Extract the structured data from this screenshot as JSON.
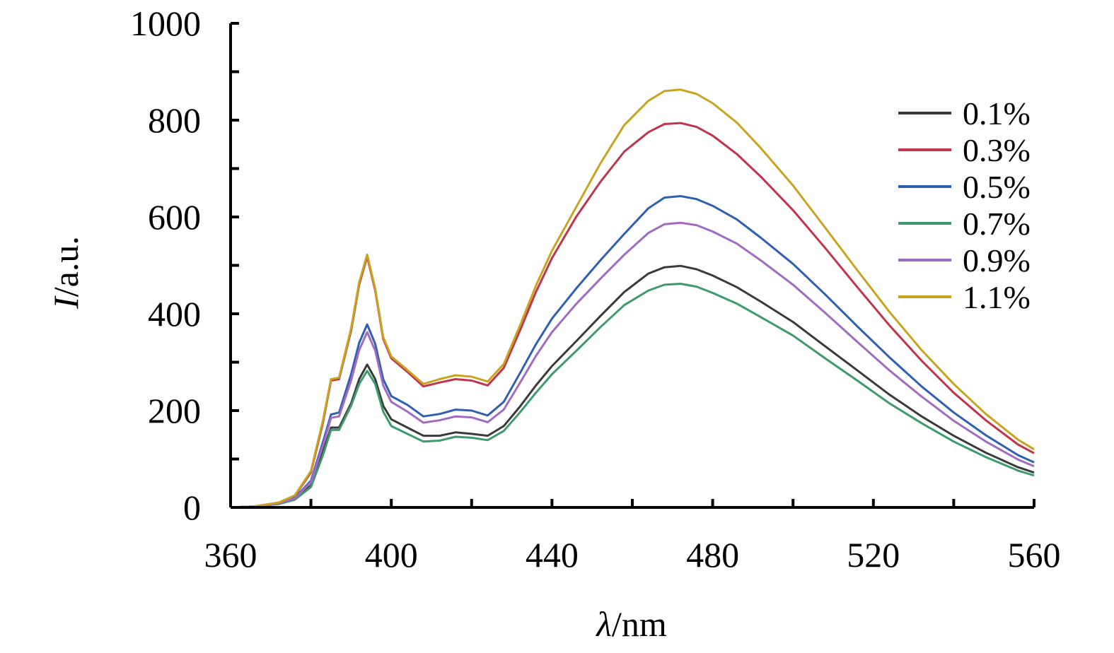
{
  "chart_data": {
    "type": "line",
    "title": "",
    "xlabel": {
      "italic": "λ",
      "rest": "/nm"
    },
    "ylabel": {
      "italic": "I",
      "rest": "/a.u."
    },
    "xlim": [
      360,
      560
    ],
    "ylim": [
      0,
      1000
    ],
    "xticks": [
      360,
      400,
      440,
      480,
      520,
      560
    ],
    "xtick_labels": [
      "360",
      "400",
      "440",
      "480",
      "520",
      "560"
    ],
    "yticks": [
      0,
      200,
      400,
      600,
      800,
      1000
    ],
    "ytick_labels": [
      "0",
      "200",
      "400",
      "600",
      "800",
      "1000"
    ],
    "legend_position": "top-right",
    "grid": false,
    "x": [
      360,
      366,
      372,
      376,
      380,
      383,
      385,
      387,
      390,
      392,
      394,
      396,
      398,
      400,
      404,
      408,
      412,
      416,
      420,
      424,
      428,
      432,
      436,
      440,
      446,
      452,
      458,
      464,
      468,
      472,
      476,
      480,
      486,
      492,
      500,
      508,
      516,
      524,
      532,
      540,
      548,
      556,
      560
    ],
    "series": [
      {
        "name": "0.1%",
        "color": "#3a3a3a",
        "values": [
          0,
          2,
          8,
          18,
          45,
          115,
          165,
          165,
          215,
          265,
          295,
          265,
          210,
          182,
          165,
          148,
          148,
          155,
          152,
          148,
          168,
          208,
          252,
          292,
          343,
          395,
          445,
          483,
          496,
          499,
          492,
          479,
          455,
          425,
          383,
          333,
          283,
          233,
          188,
          148,
          113,
          83,
          72
        ]
      },
      {
        "name": "0.3%",
        "color": "#c0344d",
        "values": [
          0,
          2,
          10,
          24,
          72,
          175,
          262,
          265,
          365,
          460,
          518,
          448,
          348,
          308,
          280,
          250,
          258,
          265,
          262,
          252,
          288,
          365,
          445,
          515,
          600,
          672,
          735,
          775,
          792,
          794,
          786,
          768,
          730,
          683,
          614,
          536,
          455,
          376,
          303,
          237,
          180,
          130,
          112
        ]
      },
      {
        "name": "0.5%",
        "color": "#2e5fb0",
        "values": [
          0,
          2,
          8,
          20,
          55,
          135,
          192,
          196,
          275,
          340,
          378,
          338,
          265,
          230,
          212,
          188,
          193,
          202,
          200,
          190,
          218,
          277,
          337,
          390,
          452,
          510,
          565,
          618,
          640,
          643,
          637,
          623,
          595,
          557,
          503,
          440,
          374,
          310,
          250,
          196,
          149,
          108,
          93
        ]
      },
      {
        "name": "0.7%",
        "color": "#3e9a6c",
        "values": [
          0,
          2,
          7,
          16,
          42,
          108,
          160,
          160,
          210,
          255,
          282,
          255,
          198,
          168,
          152,
          136,
          138,
          146,
          144,
          139,
          158,
          196,
          237,
          275,
          323,
          372,
          418,
          448,
          460,
          462,
          456,
          443,
          421,
          393,
          355,
          308,
          262,
          215,
          174,
          136,
          104,
          76,
          66
        ]
      },
      {
        "name": "0.9%",
        "color": "#a26bc2",
        "values": [
          0,
          2,
          8,
          19,
          52,
          128,
          185,
          188,
          262,
          325,
          362,
          324,
          252,
          218,
          198,
          175,
          180,
          188,
          186,
          176,
          202,
          257,
          313,
          362,
          420,
          472,
          522,
          567,
          585,
          588,
          583,
          570,
          545,
          510,
          460,
          402,
          342,
          283,
          229,
          179,
          136,
          99,
          85
        ]
      },
      {
        "name": "1.1%",
        "color": "#c9a31f",
        "values": [
          0,
          2,
          10,
          25,
          75,
          180,
          265,
          268,
          370,
          465,
          522,
          452,
          352,
          312,
          284,
          255,
          265,
          273,
          270,
          260,
          296,
          375,
          458,
          530,
          620,
          710,
          790,
          840,
          860,
          863,
          854,
          835,
          795,
          742,
          665,
          578,
          490,
          404,
          325,
          255,
          193,
          140,
          120
        ]
      }
    ]
  }
}
